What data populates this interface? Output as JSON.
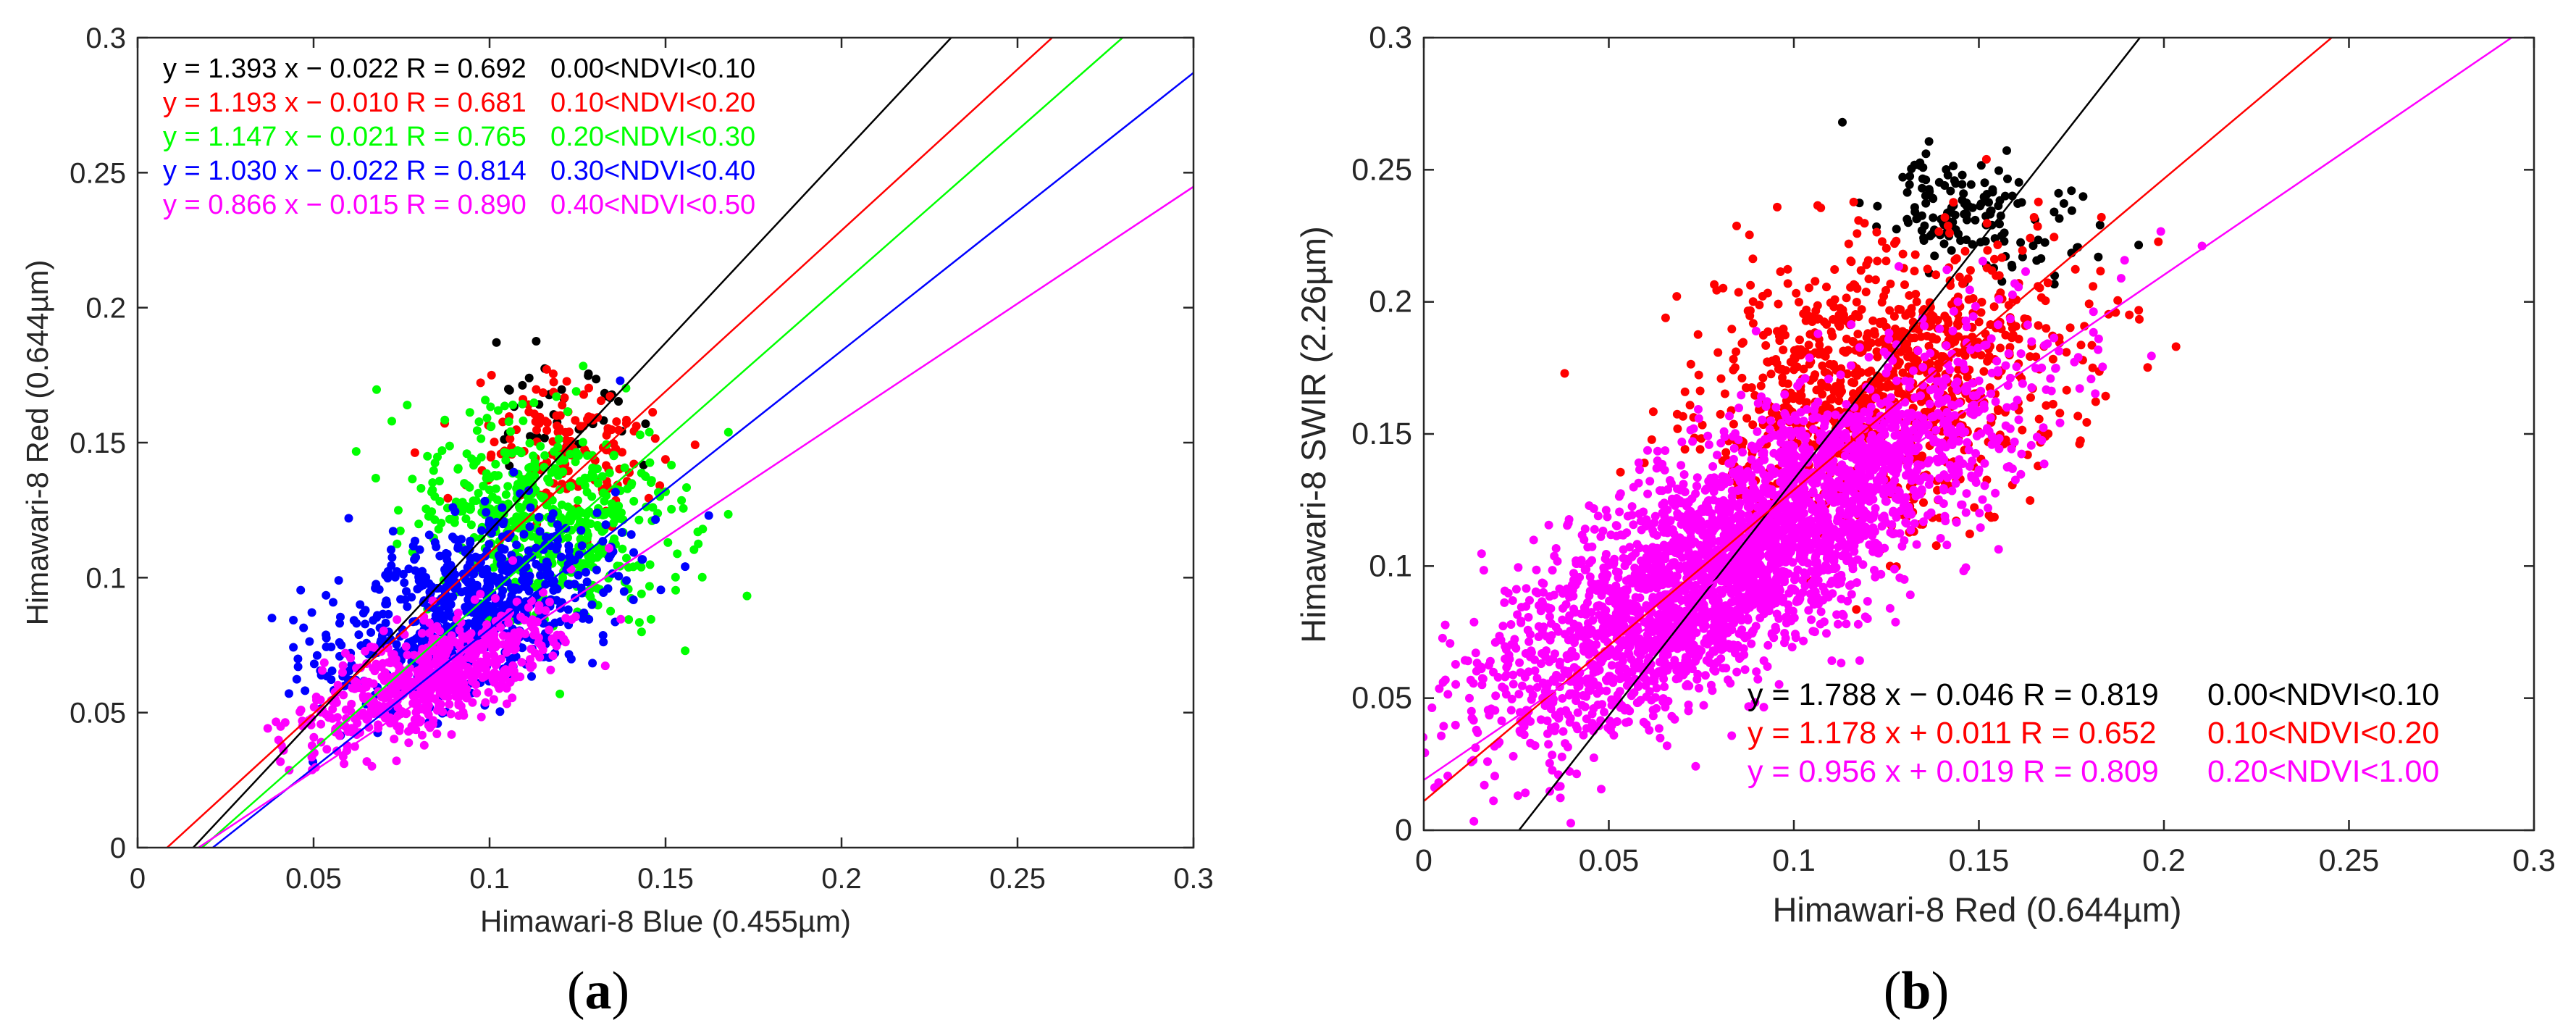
{
  "chart_data": [
    {
      "type": "scatter",
      "panel_label": {
        "open": "(",
        "letter": "a",
        "close": ")"
      },
      "xlabel": "Himawari-8 Blue (0.455µm)",
      "ylabel": "Himawari-8 Red (0.644µm)",
      "xlim": [
        0,
        0.3
      ],
      "ylim": [
        0,
        0.3
      ],
      "xticks": [
        0,
        0.05,
        0.1,
        0.15,
        0.2,
        0.25,
        0.3
      ],
      "xtick_labels": [
        "0",
        "0.05",
        "0.1",
        "0.15",
        "0.2",
        "0.25",
        "0.3"
      ],
      "yticks": [
        0,
        0.05,
        0.1,
        0.15,
        0.2,
        0.25,
        0.3
      ],
      "ytick_labels": [
        "0",
        "0.05",
        "0.1",
        "0.15",
        "0.2",
        "0.25",
        "0.3"
      ],
      "legend_position": "top-left",
      "series": [
        {
          "name": "0.00<NDVI<0.10",
          "color": "#000000",
          "slope": 1.393,
          "intercept": -0.022,
          "equation": "y = 1.393 x − 0.022 R = 0.692",
          "range_label": "0.00<NDVI<0.10",
          "cloud": {
            "center": [
              0.12,
              0.16
            ],
            "spread": [
              0.008,
              0.012
            ],
            "angle_deg": 50,
            "count": 40
          }
        },
        {
          "name": "0.10<NDVI<0.20",
          "color": "#ff0000",
          "slope": 1.193,
          "intercept": -0.01,
          "equation": "y = 1.193 x − 0.010 R = 0.681",
          "range_label": "0.10<NDVI<0.20",
          "cloud": {
            "center": [
              0.121,
              0.148
            ],
            "spread": [
              0.012,
              0.014
            ],
            "angle_deg": 45,
            "count": 160
          }
        },
        {
          "name": "0.20<NDVI<0.30",
          "color": "#00ff00",
          "slope": 1.147,
          "intercept": -0.021,
          "equation": "y = 1.147 x − 0.021 R = 0.765",
          "range_label": "0.20<NDVI<0.30",
          "cloud": {
            "center": [
              0.115,
              0.122
            ],
            "spread": [
              0.016,
              0.02
            ],
            "angle_deg": 45,
            "count": 520
          }
        },
        {
          "name": "0.30<NDVI<0.40",
          "color": "#0000ff",
          "slope": 1.03,
          "intercept": -0.022,
          "equation": "y = 1.030 x − 0.022 R = 0.814",
          "range_label": "0.30<NDVI<0.40",
          "cloud": {
            "center": [
              0.095,
              0.088
            ],
            "spread": [
              0.022,
              0.014
            ],
            "angle_deg": 38,
            "count": 700
          }
        },
        {
          "name": "0.40<NDVI<0.50",
          "color": "#ff00ff",
          "slope": 0.866,
          "intercept": -0.015,
          "equation": "y = 0.866 x − 0.015 R = 0.890",
          "range_label": "0.40<NDVI<0.50",
          "cloud": {
            "center": [
              0.083,
              0.063
            ],
            "spread": [
              0.02,
              0.008
            ],
            "angle_deg": 32,
            "count": 650
          }
        }
      ]
    },
    {
      "type": "scatter",
      "panel_label": {
        "open": "(",
        "letter": "b",
        "close": ")"
      },
      "xlabel": "Himawari-8 Red (0.644µm)",
      "ylabel": "Himawari-8 SWIR (2.26µm)",
      "xlim": [
        0,
        0.3
      ],
      "ylim": [
        0,
        0.3
      ],
      "xticks": [
        0,
        0.05,
        0.1,
        0.15,
        0.2,
        0.25,
        0.3
      ],
      "xtick_labels": [
        "0",
        "0.05",
        "0.1",
        "0.15",
        "0.2",
        "0.25",
        "0.3"
      ],
      "yticks": [
        0,
        0.05,
        0.1,
        0.15,
        0.2,
        0.25,
        0.3
      ],
      "ytick_labels": [
        "0",
        "0.05",
        "0.1",
        "0.15",
        "0.2",
        "0.25",
        "0.3"
      ],
      "legend_position": "bottom-right",
      "series": [
        {
          "name": "0.00<NDVI<0.10",
          "color": "#000000",
          "slope": 1.788,
          "intercept": -0.046,
          "equation": "y = 1.788 x − 0.046 R = 0.819",
          "range_label": "0.00<NDVI<0.10",
          "cloud": {
            "center": [
              0.148,
              0.232
            ],
            "spread": [
              0.01,
              0.014
            ],
            "angle_deg": 55,
            "count": 150
          }
        },
        {
          "name": "0.10<NDVI<0.20",
          "color": "#ff0000",
          "slope": 1.178,
          "intercept": 0.011,
          "equation": "y = 1.178 x + 0.011 R = 0.652",
          "range_label": "0.10<NDVI<0.20",
          "cloud": {
            "center": [
              0.125,
              0.17
            ],
            "spread": [
              0.03,
              0.022
            ],
            "angle_deg": 50,
            "count": 1000
          }
        },
        {
          "name": "0.20<NDVI<1.00",
          "color": "#ff00ff",
          "slope": 0.956,
          "intercept": 0.019,
          "equation": "y = 0.956 x + 0.019 R = 0.809",
          "range_label": "0.20<NDVI<1.00",
          "cloud": {
            "center": [
              0.085,
              0.105
            ],
            "spread": [
              0.045,
              0.016
            ],
            "angle_deg": 45,
            "count": 3200
          }
        }
      ]
    }
  ]
}
